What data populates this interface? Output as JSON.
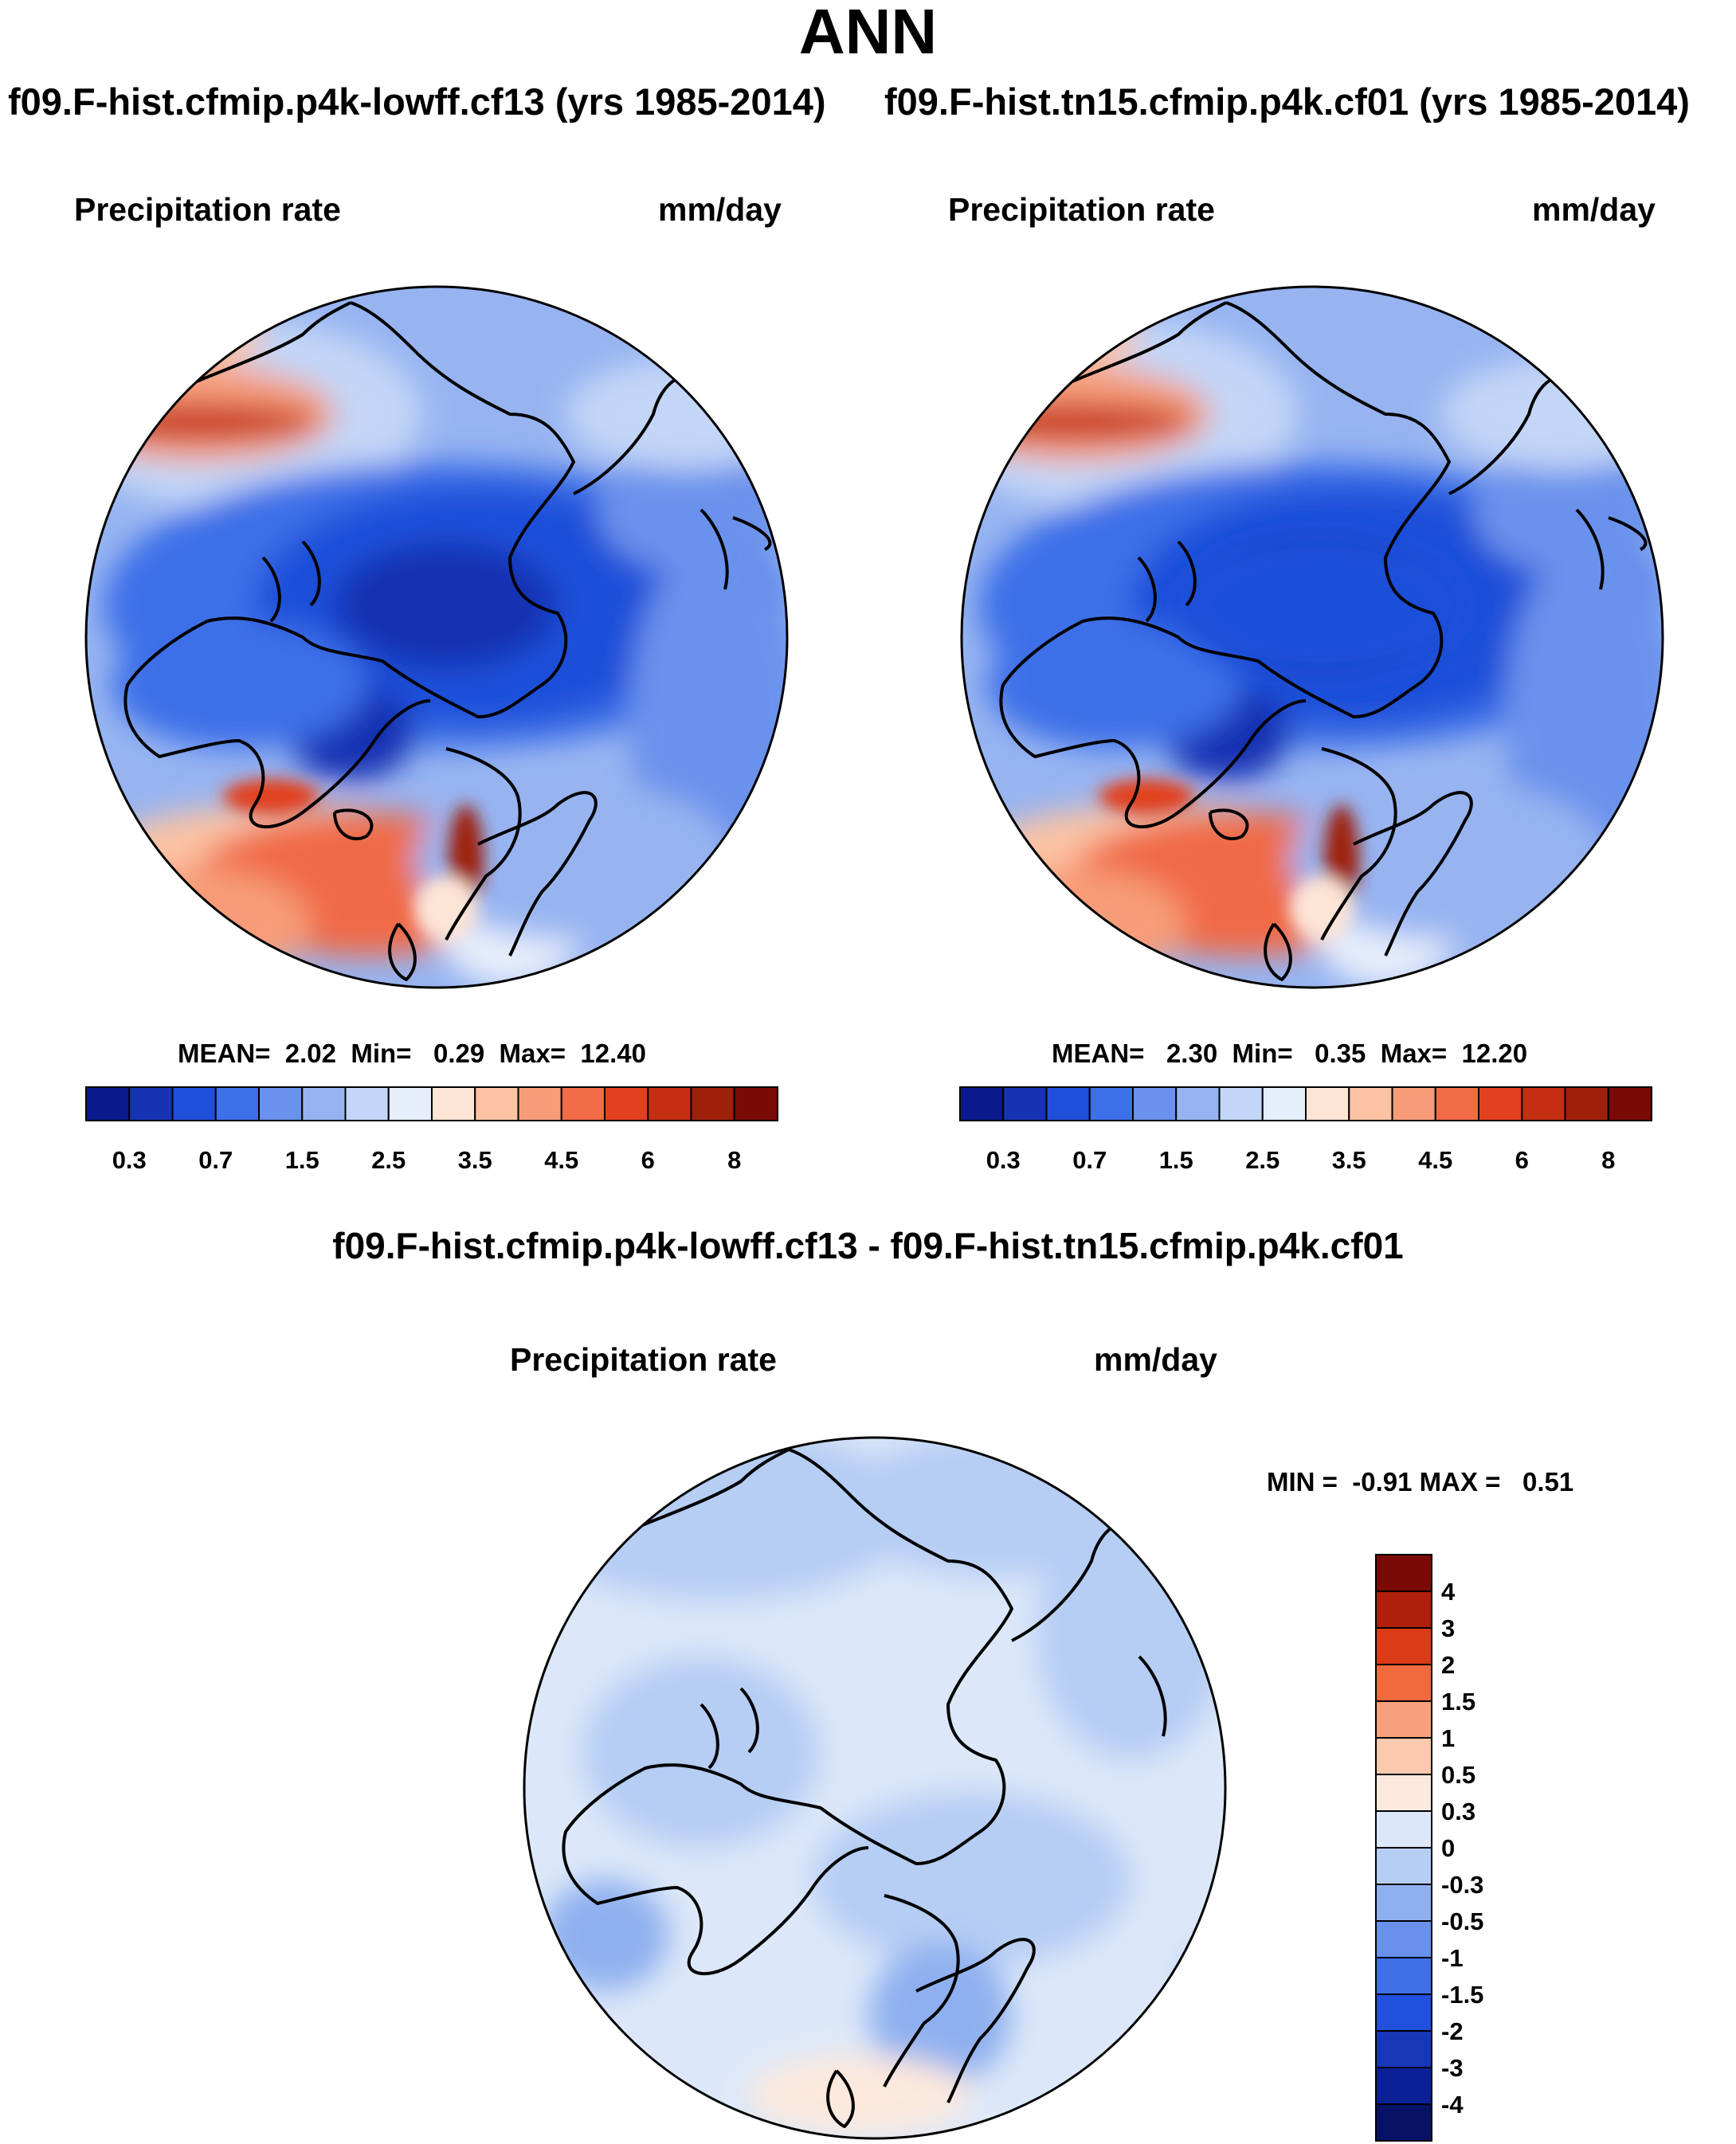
{
  "title": "ANN",
  "panels": {
    "case1": {
      "case_title": "f09.F-hist.cfmip.p4k-lowff.cf13 (yrs 1985-2014)",
      "variable": "Precipitation rate",
      "units": "mm/day",
      "stats": {
        "mean_label": "MEAN=",
        "mean": "2.02",
        "min_label": "Min=",
        "min": "0.29",
        "max_label": "Max=",
        "max": "12.40"
      }
    },
    "case2": {
      "case_title": "f09.F-hist.tn15.cfmip.p4k.cf01 (yrs 1985-2014)",
      "variable": "Precipitation rate",
      "units": "mm/day",
      "stats": {
        "mean_label": "MEAN=",
        "mean": "2.30",
        "min_label": "Min=",
        "min": "0.35",
        "max_label": "Max=",
        "max": "12.20"
      }
    },
    "diff": {
      "diff_title": "f09.F-hist.cfmip.p4k-lowff.cf13 - f09.F-hist.tn15.cfmip.p4k.cf01",
      "variable": "Precipitation rate",
      "units": "mm/day",
      "stats": {
        "min_label": "MIN =",
        "min": "-0.91",
        "max_label": "MAX =",
        "max": "0.51"
      }
    }
  },
  "colorbars": {
    "absolute": {
      "colors": [
        "#0a1a8c",
        "#1533b3",
        "#1f4fd9",
        "#3d6fe8",
        "#6a92ec",
        "#97b4f1",
        "#c3d6f7",
        "#e7eefb",
        "#fde5d6",
        "#fbc3a4",
        "#f79c78",
        "#f06b46",
        "#e2401f",
        "#c42e12",
        "#9e200b",
        "#7a0a06"
      ],
      "ticks": [
        "0.3",
        "0.7",
        "1.5",
        "2.5",
        "3.5",
        "4.5",
        "6",
        "8"
      ]
    },
    "difference": {
      "colors": [
        "#7a0a06",
        "#b01e0c",
        "#dc3b17",
        "#f16a3e",
        "#f7a07c",
        "#fbc9ad",
        "#fde9dd",
        "#dce8f9",
        "#b6cdf4",
        "#8fb0ef",
        "#6990ea",
        "#3f6fe6",
        "#2050dc",
        "#1637b8",
        "#0c2096",
        "#061266"
      ],
      "ticks": [
        "4",
        "3",
        "2",
        "1.5",
        "1",
        "0.5",
        "0.3",
        "0",
        "-0.3",
        "-0.5",
        "-1",
        "-1.5",
        "-2",
        "-3",
        "-4"
      ]
    }
  }
}
